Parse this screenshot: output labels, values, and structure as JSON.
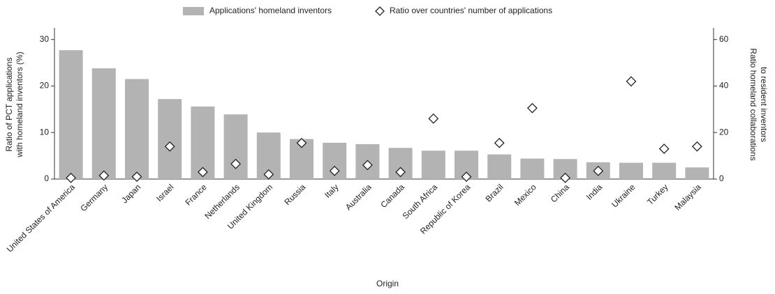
{
  "chart_data": {
    "type": "bar",
    "legend_position": "top",
    "xlabel": "Origin",
    "ylabel": [
      "Ratio of PCT applications",
      "with homeland inventors (%)"
    ],
    "y2label": [
      "Ratio homeland collaborations",
      "to resident inventors"
    ],
    "categories": [
      "United States of America",
      "Germany",
      "Japan",
      "Israel",
      "France",
      "Netherlands",
      "United Kingdom",
      "Russia",
      "Italy",
      "Australia",
      "Canada",
      "South Africa",
      "Republic of Korea",
      "Brazil",
      "Mexico",
      "China",
      "India",
      "Ukraine",
      "Turkey",
      "Malaysia"
    ],
    "series": [
      {
        "name": "Applications' homeland inventors",
        "type": "bar",
        "color": "#b3b3b3",
        "values": [
          27.7,
          23.8,
          21.5,
          17.2,
          15.6,
          13.9,
          10.0,
          8.6,
          7.8,
          7.5,
          6.7,
          6.1,
          6.1,
          5.3,
          4.4,
          4.3,
          3.6,
          3.5,
          3.5,
          2.5
        ]
      },
      {
        "name": "Ratio over countries' number of applications",
        "type": "scatter",
        "axis": "y2",
        "color": "#222222",
        "values": [
          0.5,
          1.5,
          1,
          14,
          3,
          6.5,
          2,
          15.5,
          3.5,
          6,
          3,
          26,
          1,
          15.5,
          30.5,
          0.5,
          3.5,
          42,
          13,
          14
        ]
      }
    ],
    "ylim": [
      0,
      32.5
    ],
    "yticks": [
      0,
      10,
      20,
      30
    ],
    "y2lim": [
      0,
      65
    ],
    "y2ticks": [
      0,
      20,
      40,
      60
    ]
  }
}
